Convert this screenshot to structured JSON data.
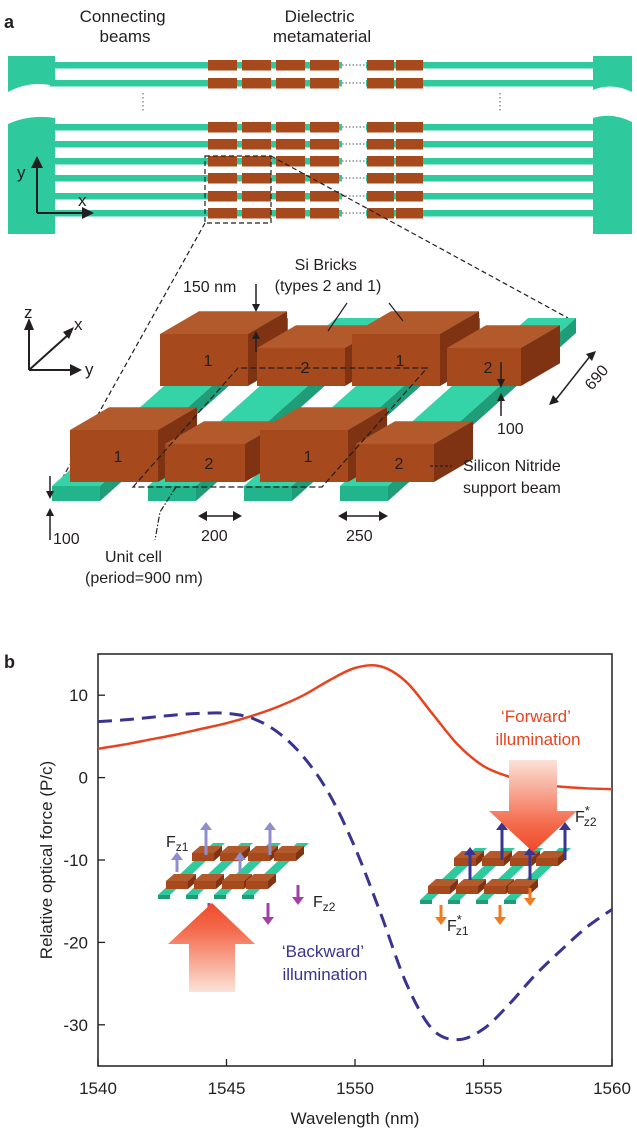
{
  "panel_a": {
    "label": "a",
    "top_labels": {
      "connecting_beams": [
        "Connecting",
        "beams"
      ],
      "dielectric_metamaterial": [
        "Dielectric",
        "metamaterial"
      ]
    },
    "axes_top": {
      "y": "y",
      "x": "x"
    },
    "axes_3d": {
      "z": "z",
      "x": "x",
      "y": "y"
    },
    "annotations": {
      "brick_height": "150 nm",
      "si_bricks": [
        "Si Bricks",
        "(types 2 and 1)"
      ],
      "beam_length": "690",
      "beam_thickness_right": "100",
      "beam_thickness_left": "100",
      "gap_width": "200",
      "beam_width": "250",
      "silicon_nitride": [
        "Silicon Nitride",
        "support beam"
      ],
      "unit_cell": [
        "Unit cell",
        "(period=900 nm)"
      ]
    },
    "brick_labels": [
      "1",
      "2",
      "1",
      "2",
      "1",
      "2",
      "1",
      "2"
    ],
    "colors": {
      "beam": "#2ec99d",
      "brick": "#a64a1e"
    }
  },
  "panel_b": {
    "label": "b",
    "inset_labels": {
      "fz1": "F",
      "fz1_sub": "z1",
      "fz2": "F",
      "fz2_sub": "z2",
      "fz1_star": "F",
      "fz1_star_sub": "z1",
      "fz2_star": "F",
      "fz2_star_sub": "z2",
      "star": "*"
    },
    "illumination": {
      "forward": [
        "‘Forward’",
        "illumination"
      ],
      "backward": [
        "‘Backward’",
        "illumination"
      ]
    }
  },
  "chart_data": {
    "type": "line",
    "title": "",
    "xlabel": "Wavelength (nm)",
    "ylabel": "Relative optical force (P/c)",
    "xlim": [
      1540,
      1560
    ],
    "ylim": [
      -35,
      15
    ],
    "xticks": [
      1540,
      1545,
      1550,
      1555,
      1560
    ],
    "yticks": [
      10,
      0,
      -10,
      -20,
      -30
    ],
    "series": [
      {
        "style": "solid",
        "color": "#e8431f",
        "x": [
          1540,
          1541,
          1542,
          1543,
          1544,
          1545,
          1546,
          1547,
          1548,
          1549,
          1550,
          1551,
          1552,
          1553,
          1554,
          1555,
          1556,
          1557,
          1558,
          1559,
          1560
        ],
        "y": [
          3.5,
          4.0,
          4.6,
          5.2,
          5.9,
          6.6,
          7.5,
          8.6,
          10.0,
          11.8,
          13.3,
          13.5,
          11.6,
          7.8,
          4.0,
          1.4,
          0.1,
          -0.7,
          -1.1,
          -1.3,
          -1.4
        ]
      },
      {
        "style": "dashed",
        "color": "#3a3491",
        "x": [
          1540,
          1541,
          1542,
          1543,
          1544,
          1545,
          1546,
          1547,
          1548,
          1549,
          1550,
          1551,
          1552,
          1553,
          1554,
          1555,
          1556,
          1557,
          1558,
          1559,
          1560
        ],
        "y": [
          6.8,
          7.0,
          7.3,
          7.6,
          7.8,
          7.8,
          7.2,
          5.5,
          2.5,
          -2.0,
          -8.5,
          -16.5,
          -25.0,
          -30.5,
          -31.8,
          -30.5,
          -27.5,
          -24.0,
          -21.0,
          -18.2,
          -16.0
        ]
      }
    ]
  }
}
